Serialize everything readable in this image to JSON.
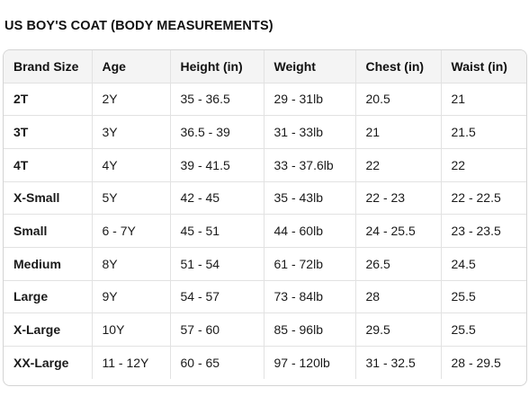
{
  "title": "US BOY'S COAT (BODY MEASUREMENTS)",
  "table": {
    "headers": [
      "Brand Size",
      "Age",
      "Height (in)",
      "Weight",
      "Chest (in)",
      "Waist (in)"
    ],
    "rows": [
      [
        "2T",
        "2Y",
        "35 - 36.5",
        "29 - 31lb",
        "20.5",
        "21"
      ],
      [
        "3T",
        "3Y",
        "36.5 - 39",
        "31 - 33lb",
        "21",
        "21.5"
      ],
      [
        "4T",
        "4Y",
        "39 - 41.5",
        "33 - 37.6lb",
        "22",
        "22"
      ],
      [
        "X-Small",
        "5Y",
        "42 - 45",
        "35 - 43lb",
        "22 - 23",
        "22 - 22.5"
      ],
      [
        "Small",
        "6 - 7Y",
        "45 - 51",
        "44 - 60lb",
        "24 - 25.5",
        "23 - 23.5"
      ],
      [
        "Medium",
        "8Y",
        "51 - 54",
        "61 - 72lb",
        "26.5",
        "24.5"
      ],
      [
        "Large",
        "9Y",
        "54 - 57",
        "73 - 84lb",
        "28",
        "25.5"
      ],
      [
        "X-Large",
        "10Y",
        "57 - 60",
        "85 - 96lb",
        "29.5",
        "25.5"
      ],
      [
        "XX-Large",
        "11 - 12Y",
        "60 - 65",
        "97 - 120lb",
        "31 - 32.5",
        "28 - 29.5"
      ]
    ]
  }
}
